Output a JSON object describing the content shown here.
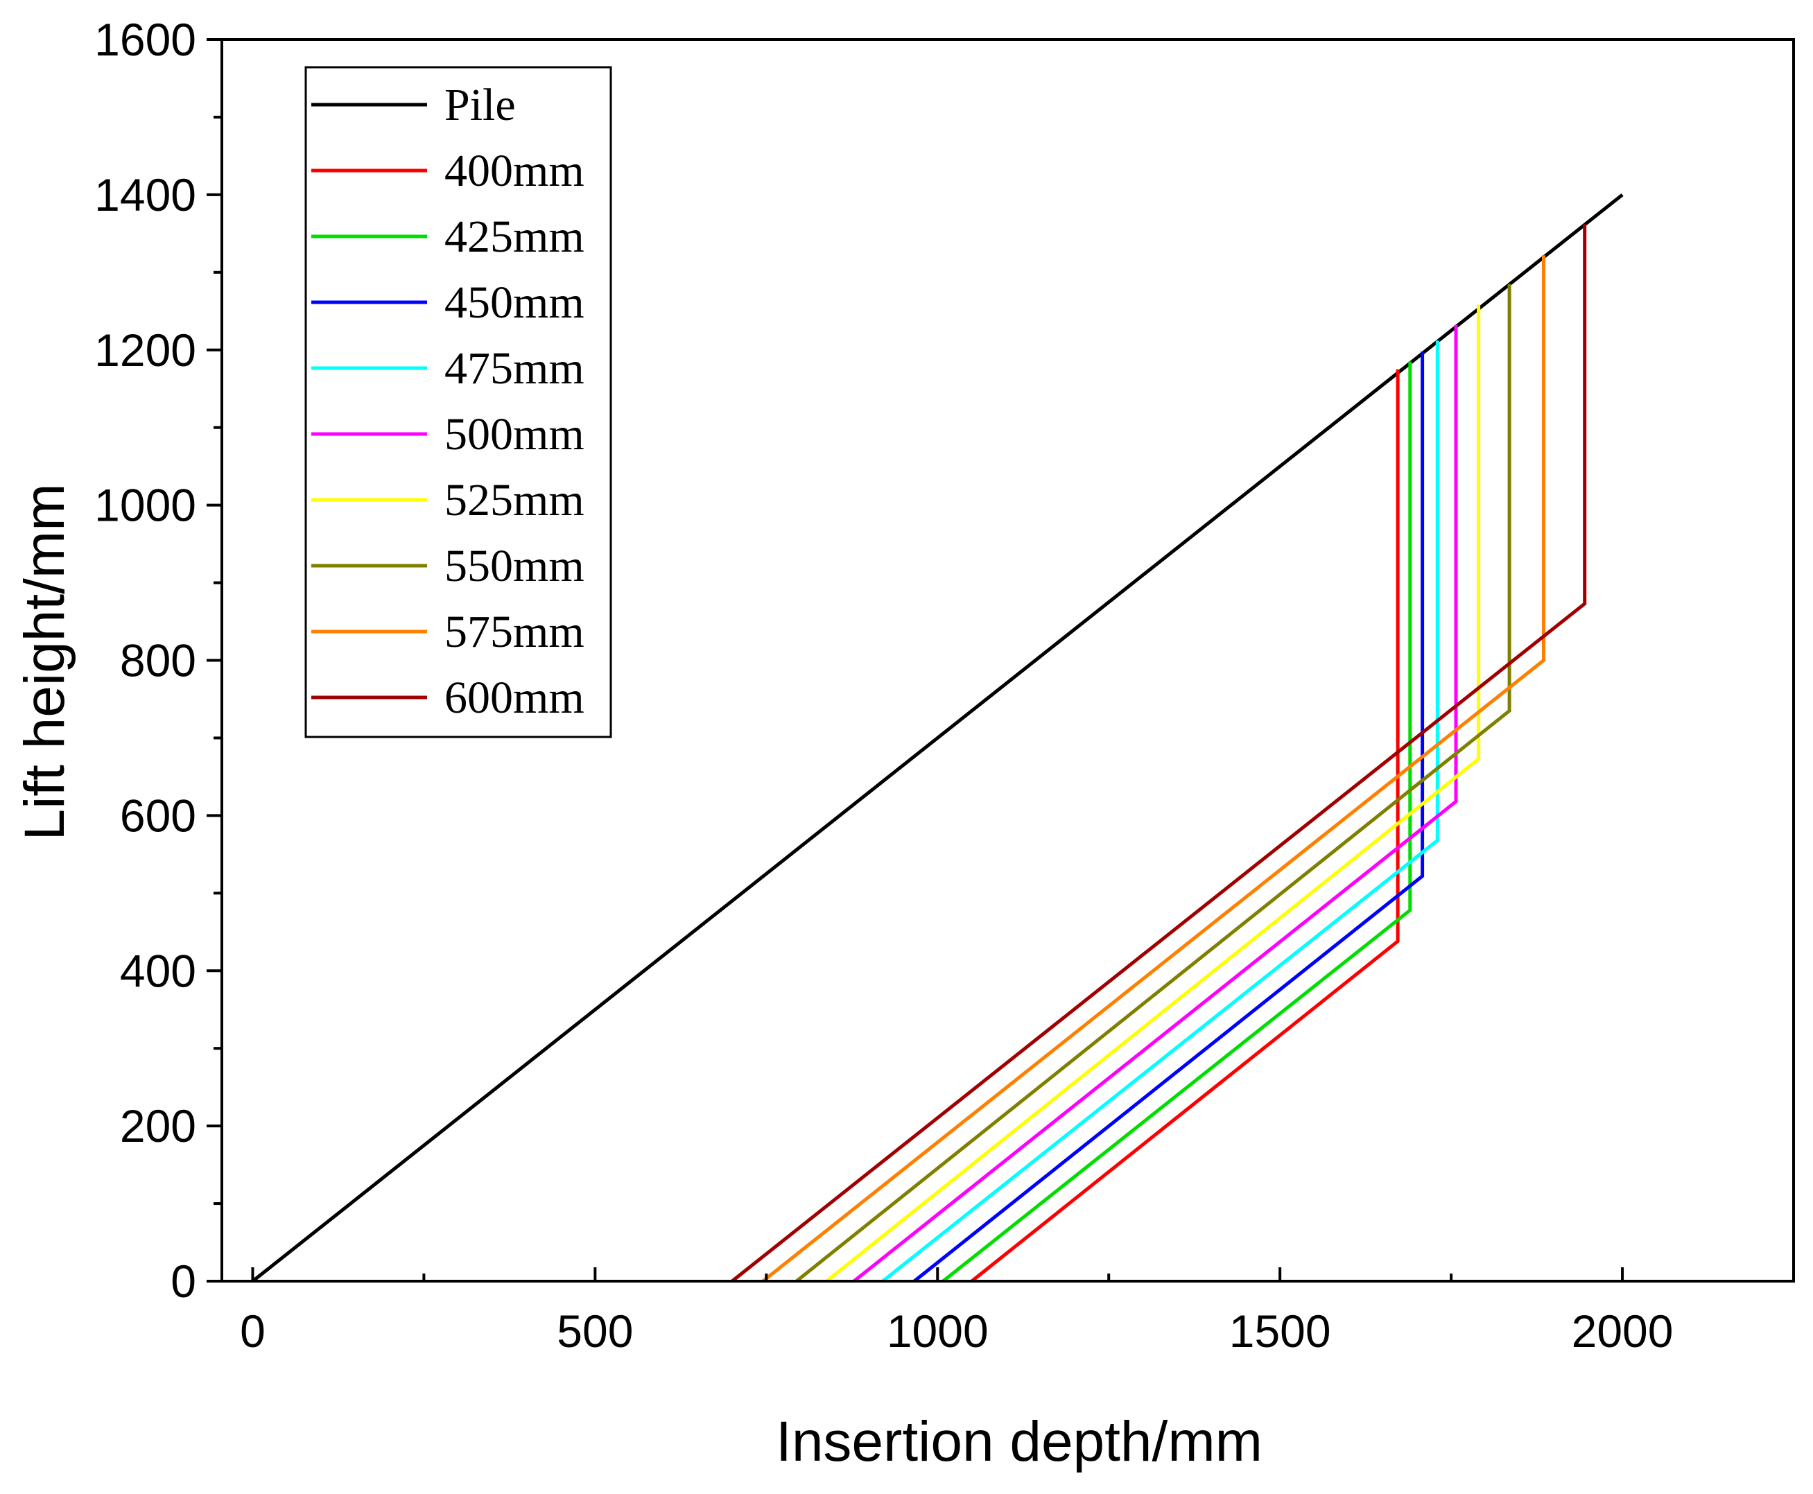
{
  "chart_data": {
    "type": "line",
    "title": "",
    "xlabel": "Insertion depth/mm",
    "ylabel": "Lift height/mm",
    "xlim": [
      -45,
      2250
    ],
    "ylim": [
      0,
      1600
    ],
    "xticks": [
      0,
      500,
      1000,
      1500,
      2000
    ],
    "yticks": [
      0,
      200,
      400,
      600,
      800,
      1000,
      1200,
      1400,
      1600
    ],
    "xtick_labels": [
      "0",
      "500",
      "1000",
      "1500",
      "2000"
    ],
    "ytick_labels": [
      "0",
      "200",
      "400",
      "600",
      "800",
      "1000",
      "1200",
      "1400",
      "1600"
    ],
    "legend_position": "top-left",
    "series": [
      {
        "name": "Pile",
        "color": "#000000",
        "points": [
          [
            0,
            0
          ],
          [
            2000,
            1400
          ]
        ]
      },
      {
        "name": "400mm",
        "color": "#ff0000",
        "points": [
          [
            1050,
            0
          ],
          [
            1672,
            438
          ],
          [
            1672,
            1175
          ]
        ]
      },
      {
        "name": "425mm",
        "color": "#00dd00",
        "points": [
          [
            1008,
            0
          ],
          [
            1690,
            478
          ],
          [
            1690,
            1185
          ]
        ]
      },
      {
        "name": "450mm",
        "color": "#0000ff",
        "points": [
          [
            966,
            0
          ],
          [
            1708,
            522
          ],
          [
            1708,
            1198
          ]
        ]
      },
      {
        "name": "475mm",
        "color": "#00ffff",
        "points": [
          [
            920,
            0
          ],
          [
            1730,
            568
          ],
          [
            1730,
            1212
          ]
        ]
      },
      {
        "name": "500mm",
        "color": "#ff00ff",
        "points": [
          [
            878,
            0
          ],
          [
            1757,
            618
          ],
          [
            1757,
            1232
          ]
        ]
      },
      {
        "name": "525mm",
        "color": "#ffff00",
        "points": [
          [
            838,
            0
          ],
          [
            1790,
            673
          ],
          [
            1790,
            1258
          ]
        ]
      },
      {
        "name": "550mm",
        "color": "#808000",
        "points": [
          [
            794,
            0
          ],
          [
            1835,
            735
          ],
          [
            1835,
            1285
          ]
        ]
      },
      {
        "name": "575mm",
        "color": "#ff8000",
        "points": [
          [
            745,
            0
          ],
          [
            1885,
            800
          ],
          [
            1885,
            1322
          ]
        ]
      },
      {
        "name": "600mm",
        "color": "#a00000",
        "points": [
          [
            700,
            0
          ],
          [
            1945,
            873
          ],
          [
            1945,
            1362
          ]
        ]
      }
    ]
  }
}
